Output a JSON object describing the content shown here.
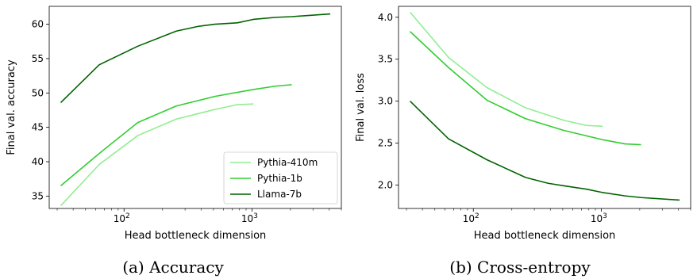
{
  "colors": {
    "Pythia-410m": "#90ee90",
    "Pythia-1b": "#32cd32",
    "Llama-7b": "#006400"
  },
  "chart_data": [
    {
      "type": "line",
      "caption": "(a) Accuracy",
      "xlabel": "Head bottleneck dimension",
      "ylabel": "Final val. accuracy",
      "xscale": "log",
      "xlim": [
        26,
        5000
      ],
      "ylim": [
        33.2,
        62.6
      ],
      "xticks": [
        {
          "value": 100,
          "base": "10",
          "exp": "2"
        },
        {
          "value": 1000,
          "base": "10",
          "exp": "3"
        }
      ],
      "yticks": [
        35,
        40,
        45,
        50,
        55,
        60
      ],
      "grid": false,
      "legend": {
        "position": "lower-right",
        "entries": [
          "Pythia-410m",
          "Pythia-1b",
          "Llama-7b"
        ]
      },
      "series": [
        {
          "name": "Pythia-410m",
          "x": [
            32,
            64,
            128,
            256,
            512,
            768,
            1024
          ],
          "y": [
            33.6,
            39.6,
            43.8,
            46.2,
            47.6,
            48.3,
            48.4
          ]
        },
        {
          "name": "Pythia-1b",
          "x": [
            32,
            64,
            128,
            256,
            512,
            1024,
            1536,
            2048
          ],
          "y": [
            36.5,
            41.2,
            45.7,
            48.1,
            49.5,
            50.5,
            51.0,
            51.2
          ]
        },
        {
          "name": "Llama-7b",
          "x": [
            32,
            64,
            128,
            256,
            384,
            512,
            768,
            1024,
            1536,
            2048,
            4096
          ],
          "y": [
            48.6,
            54.1,
            56.8,
            59.0,
            59.7,
            60.0,
            60.2,
            60.7,
            61.0,
            61.1,
            61.5
          ]
        }
      ]
    },
    {
      "type": "line",
      "caption": "(b) Cross-entropy",
      "xlabel": "Head bottleneck dimension",
      "ylabel": "Final val. loss",
      "xscale": "log",
      "xlim": [
        26,
        5000
      ],
      "ylim": [
        1.72,
        4.13
      ],
      "xticks": [
        {
          "value": 100,
          "base": "10",
          "exp": "2"
        },
        {
          "value": 1000,
          "base": "10",
          "exp": "3"
        }
      ],
      "yticks": [
        "2.0",
        "2.5",
        "3.0",
        "3.5",
        "4.0"
      ],
      "grid": false,
      "series": [
        {
          "name": "Pythia-410m",
          "x": [
            32,
            64,
            128,
            256,
            512,
            768,
            1024
          ],
          "y": [
            4.06,
            3.52,
            3.16,
            2.92,
            2.77,
            2.71,
            2.7
          ]
        },
        {
          "name": "Pythia-1b",
          "x": [
            32,
            64,
            128,
            256,
            512,
            1024,
            1536,
            2048
          ],
          "y": [
            3.83,
            3.4,
            3.01,
            2.79,
            2.65,
            2.54,
            2.49,
            2.48
          ]
        },
        {
          "name": "Llama-7b",
          "x": [
            32,
            64,
            128,
            256,
            384,
            512,
            768,
            1024,
            1536,
            2048,
            4096
          ],
          "y": [
            3.0,
            2.55,
            2.3,
            2.09,
            2.02,
            1.99,
            1.95,
            1.91,
            1.87,
            1.85,
            1.82
          ]
        }
      ]
    }
  ]
}
